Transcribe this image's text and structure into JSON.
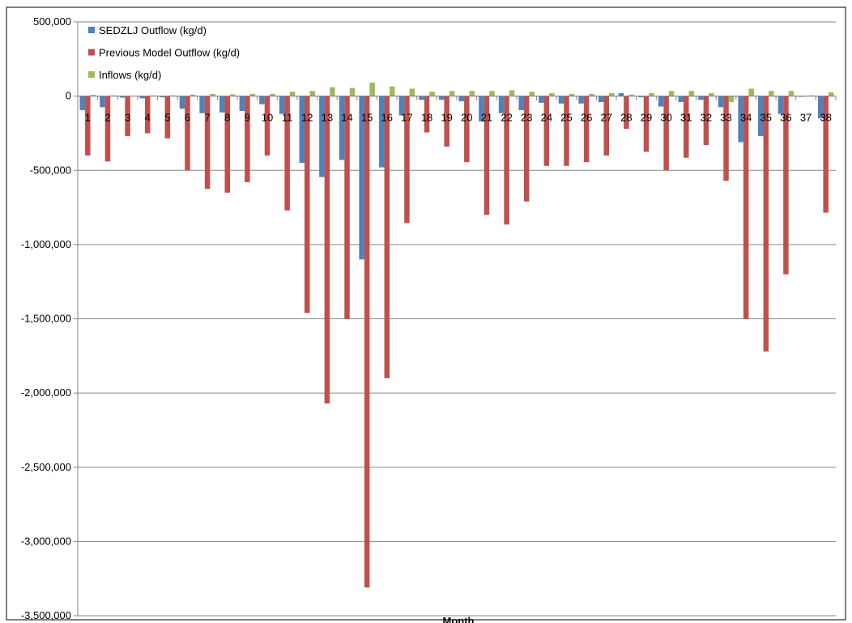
{
  "chart_data": {
    "type": "bar",
    "title": "",
    "xlabel": "Month",
    "ylabel": "",
    "ylim": [
      -3500000,
      500000
    ],
    "yticks": [
      500000,
      0,
      -500000,
      -1000000,
      -1500000,
      -2000000,
      -2500000,
      -3000000,
      -3500000
    ],
    "ytick_labels": [
      "500,000",
      "0",
      "-500,000",
      "-1,000,000",
      "-1,500,000",
      "-2,000,000",
      "-2,500,000",
      "-3,000,000",
      "-3,500,000"
    ],
    "grid": true,
    "legend_position": "top-left",
    "categories": [
      "1",
      "2",
      "3",
      "4",
      "5",
      "6",
      "7",
      "8",
      "9",
      "10",
      "11",
      "12",
      "13",
      "14",
      "15",
      "16",
      "17",
      "18",
      "19",
      "20",
      "21",
      "22",
      "23",
      "24",
      "25",
      "26",
      "27",
      "28",
      "29",
      "30",
      "31",
      "32",
      "33",
      "34",
      "35",
      "36",
      "37",
      "38"
    ],
    "series": [
      {
        "name": "SEDZLJ Outflow (kg/d)",
        "color": "#4f81bd",
        "values": [
          -95000,
          -75000,
          -10000,
          -15000,
          -8000,
          -85000,
          -115000,
          -110000,
          -100000,
          -55000,
          -120000,
          -450000,
          -545000,
          -430000,
          -1100000,
          -480000,
          -130000,
          -25000,
          -25000,
          -35000,
          -170000,
          -115000,
          -95000,
          -45000,
          -50000,
          -50000,
          -40000,
          20000,
          -8000,
          -70000,
          -40000,
          -25000,
          -75000,
          -310000,
          -270000,
          -120000,
          -5000,
          -150000
        ]
      },
      {
        "name": "Previous Model Outflow (kg/d)",
        "color": "#c0504d",
        "values": [
          -400000,
          -440000,
          -270000,
          -250000,
          -285000,
          -500000,
          -625000,
          -650000,
          -580000,
          -400000,
          -770000,
          -1460000,
          -2070000,
          -1500000,
          -3310000,
          -1900000,
          -855000,
          -245000,
          -340000,
          -445000,
          -800000,
          -865000,
          -710000,
          -470000,
          -470000,
          -445000,
          -400000,
          -220000,
          -375000,
          -500000,
          -415000,
          -330000,
          -570000,
          -1500000,
          -1720000,
          -1200000,
          -2000,
          -785000
        ]
      },
      {
        "name": "Inflows (kg/d)",
        "color": "#9bbb59",
        "values": [
          8000,
          5000,
          3000,
          5000,
          5000,
          10000,
          15000,
          12000,
          15000,
          15000,
          30000,
          35000,
          60000,
          55000,
          90000,
          65000,
          50000,
          30000,
          35000,
          35000,
          35000,
          40000,
          30000,
          20000,
          15000,
          15000,
          20000,
          10000,
          20000,
          35000,
          35000,
          20000,
          -40000,
          50000,
          35000,
          35000,
          5000,
          25000
        ]
      }
    ]
  }
}
